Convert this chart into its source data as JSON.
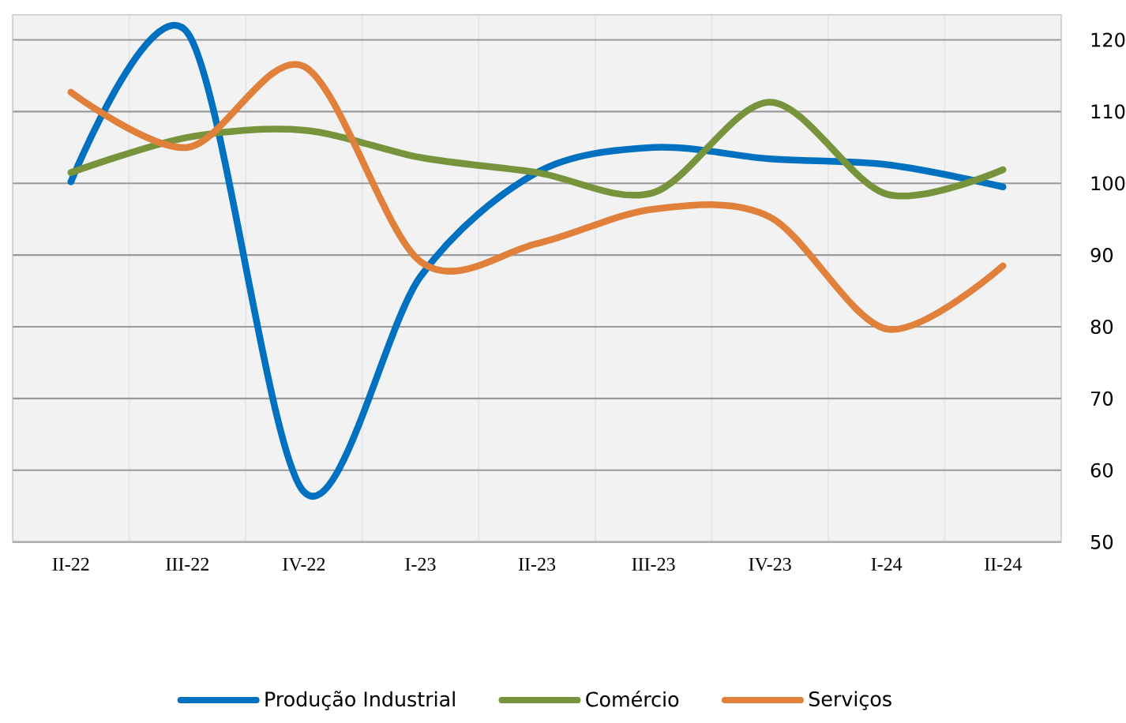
{
  "chart_data": {
    "type": "line",
    "categories": [
      "II-22",
      "III-22",
      "IV-22",
      "I-23",
      "II-23",
      "III-23",
      "IV-23",
      "I-24",
      "II-24"
    ],
    "series": [
      {
        "name": "Produção Industrial",
        "color": "#0070c0",
        "values": [
          100.2,
          121,
          57,
          87,
          101.5,
          105,
          103.4,
          102.6,
          99.5
        ]
      },
      {
        "name": "Comércio",
        "color": "#77933c",
        "values": [
          101.5,
          106.4,
          107.4,
          103.6,
          101.5,
          98.7,
          111.3,
          98.5,
          101.9
        ]
      },
      {
        "name": "Serviços",
        "color": "#e0803a",
        "values": [
          112.7,
          105,
          116.3,
          89.1,
          91.6,
          96.4,
          95.3,
          79.7,
          88.5
        ]
      }
    ],
    "ylim": [
      50,
      123.5
    ],
    "yticks": [
      50,
      60,
      70,
      80,
      90,
      100,
      110,
      120
    ],
    "grid": true,
    "legend": "bottom",
    "marker": "none",
    "line_style": "solid"
  }
}
